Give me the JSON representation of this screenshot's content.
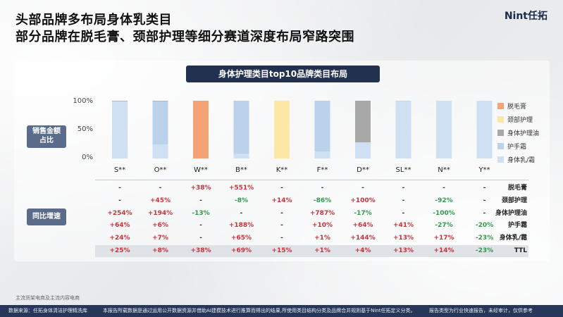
{
  "header": {
    "title_line1": "头部品牌多布局身体乳类目",
    "title_line2": "部分品牌在脱毛膏、颈部护理等细分赛道深度布局窄路突围",
    "logo": "Nint任拓"
  },
  "labels": {
    "sales_share": "销售金额\n占比",
    "yoy": "同比增速"
  },
  "colors": {
    "脱毛膏": "#f2a477",
    "颈部护理": "#fde7a6",
    "身体护理油": "#a8a8a8",
    "护手霜": "#bcd1ea",
    "身体乳/霜": "#cfe0f3"
  },
  "chart_data": {
    "type": "bar",
    "stacked": true,
    "title": "身体护理类目top10品牌类目布局",
    "categories": [
      "S**",
      "O**",
      "W**",
      "B**",
      "K**",
      "F**",
      "D**",
      "SL**",
      "N**",
      "Y**"
    ],
    "yticks": [
      "100%",
      "50%",
      "0%"
    ],
    "ylim": [
      0,
      100
    ],
    "legend_position": "right",
    "series": [
      {
        "name": "脱毛膏",
        "values": [
          0,
          0,
          100,
          0,
          0,
          0,
          0,
          0,
          0,
          0
        ]
      },
      {
        "name": "颈部护理",
        "values": [
          0,
          0,
          0,
          0,
          100,
          0,
          0,
          0,
          0,
          0
        ]
      },
      {
        "name": "身体护理油",
        "values": [
          1,
          1,
          0,
          0,
          0,
          0,
          72,
          0,
          0,
          0
        ]
      },
      {
        "name": "护手霜",
        "values": [
          0,
          75,
          0,
          92,
          0,
          88,
          0,
          1,
          0,
          0
        ]
      },
      {
        "name": "身体乳/霜",
        "values": [
          99,
          24,
          0,
          8,
          0,
          12,
          28,
          99,
          100,
          100
        ]
      }
    ]
  },
  "table": {
    "row_names": [
      "脱毛膏",
      "颈部护理",
      "身体护理油",
      "护手霜",
      "身体乳/霜",
      "TTL"
    ],
    "rows": [
      [
        "-",
        "-",
        "+38%",
        "+551%",
        "-",
        "-",
        "-",
        "-",
        "-",
        "-"
      ],
      [
        "-",
        "+45%",
        "-",
        "-8%",
        "+14%",
        "-86%",
        "+100%",
        "-",
        "-92%",
        "-"
      ],
      [
        "+254%",
        "+194%",
        "-13%",
        "-",
        "-",
        "+787%",
        "-17%",
        "-",
        "-100%",
        "-"
      ],
      [
        "+64%",
        "+6%",
        "-",
        "+188%",
        "-",
        "+10%",
        "+64%",
        "+41%",
        "-27%",
        "-20%"
      ],
      [
        "+24%",
        "+7%",
        "-",
        "+65%",
        "-",
        "+1%",
        "+144%",
        "+13%",
        "+17%",
        "-23%"
      ],
      [
        "+25%",
        "+8%",
        "+38%",
        "+69%",
        "+15%",
        "+1%",
        "+4%",
        "+13%",
        "+14%",
        "-23%"
      ]
    ]
  },
  "footnote": "主流货架电商及主流内容电商",
  "footer": {
    "source": "数据来源：任拓身体清洁护理精洗库",
    "disclaimer": "本报告所载数据是通过运用公开数据资源并借助AI建模技术进行推算而得出的结果,所使用类目结构分类及品牌合并规则基于Nint任拓定义分类。",
    "note": "报告类型为行业快速报告，未经审计，仅供参考"
  }
}
